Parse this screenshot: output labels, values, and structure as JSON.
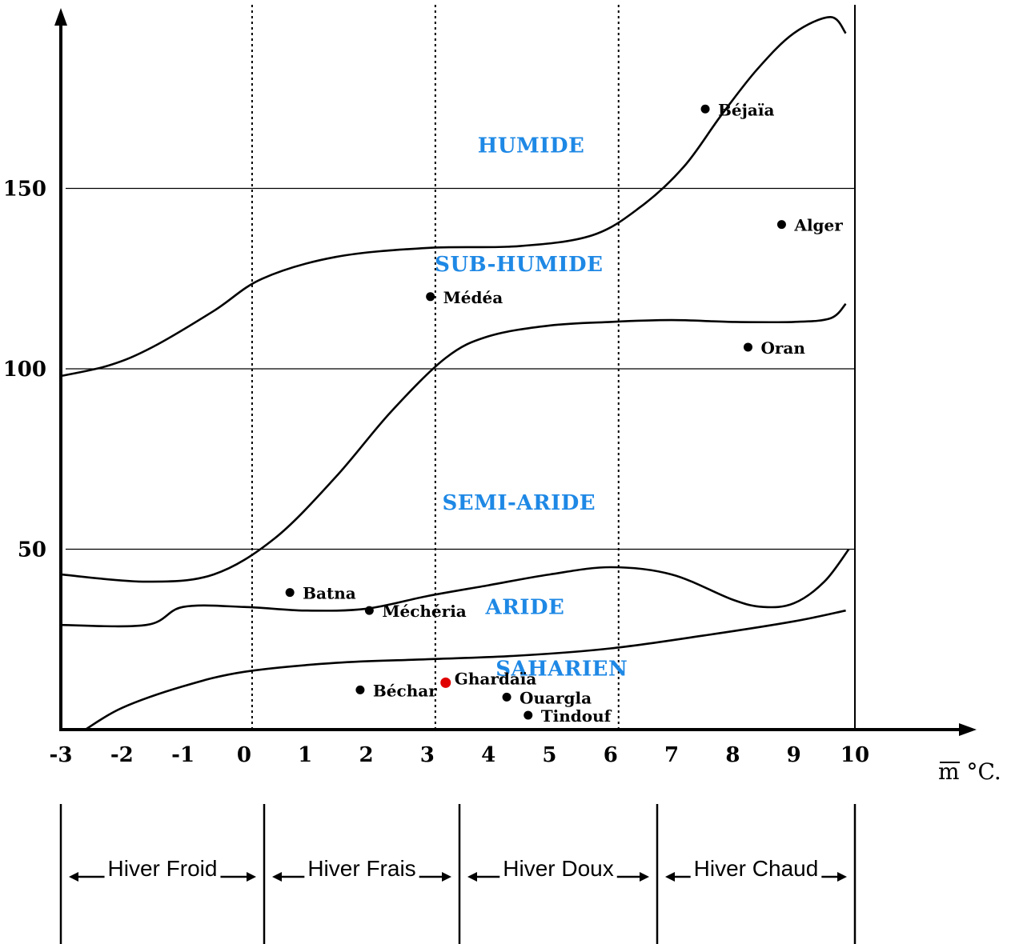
{
  "chart_data": {
    "type": "scatter",
    "title": "",
    "xlabel": "m °C.",
    "ylabel": "",
    "xlim": [
      -3,
      10
    ],
    "ylim": [
      0,
      150
    ],
    "x_ticks": [
      "-3",
      "-2",
      "-1",
      "0",
      "1",
      "2",
      "3",
      "4",
      "5",
      "6",
      "7",
      "8",
      "9",
      "10"
    ],
    "y_ticks": [
      "50",
      "100",
      "150"
    ],
    "grid": "horizontal lines at 50, 100, 150",
    "colors": {
      "axis": "#000000",
      "zone_label": "#1e88e5",
      "highlight": "#e00000",
      "station": "#000000"
    },
    "zones": [
      "HUMIDE",
      "SUB-HUMIDE",
      "SEMI-ARIDE",
      "ARIDE",
      "SAHARIEN"
    ],
    "zone_positions": [
      {
        "name": "HUMIDE",
        "x": 4.7,
        "y": 162
      },
      {
        "name": "SUB-HUMIDE",
        "x": 4.5,
        "y": 129
      },
      {
        "name": "SEMI-ARIDE",
        "x": 4.5,
        "y": 63
      },
      {
        "name": "ARIDE",
        "x": 4.6,
        "y": 34
      },
      {
        "name": "SAHARIEN",
        "x": 5.2,
        "y": 17
      }
    ],
    "boundaries": [
      {
        "name": "humide / sub-humide",
        "points": [
          [
            -3,
            98
          ],
          [
            -2.2,
            101
          ],
          [
            -1.5,
            106
          ],
          [
            -0.5,
            116
          ],
          [
            0.3,
            125
          ],
          [
            1.5,
            131
          ],
          [
            3,
            133.5
          ],
          [
            4.5,
            134
          ],
          [
            5.7,
            137
          ],
          [
            6.5,
            145
          ],
          [
            7.2,
            156
          ],
          [
            7.8,
            170
          ],
          [
            8.4,
            183
          ],
          [
            9.0,
            193
          ],
          [
            9.6,
            197.5
          ],
          [
            9.85,
            193
          ]
        ]
      },
      {
        "name": "sub-humide / semi-aride",
        "points": [
          [
            -3,
            43
          ],
          [
            -1.6,
            41
          ],
          [
            -0.5,
            43
          ],
          [
            0.5,
            53
          ],
          [
            1.5,
            70
          ],
          [
            2.4,
            88
          ],
          [
            3.3,
            103
          ],
          [
            4.0,
            109
          ],
          [
            5.0,
            112
          ],
          [
            6.0,
            113
          ],
          [
            7.0,
            113.5
          ],
          [
            8.0,
            113
          ],
          [
            9.0,
            113
          ],
          [
            9.6,
            114
          ],
          [
            9.85,
            118
          ]
        ]
      },
      {
        "name": "semi-aride / aride",
        "points": [
          [
            -3,
            29
          ],
          [
            -1.6,
            29
          ],
          [
            -1.0,
            34
          ],
          [
            0,
            34
          ],
          [
            1.0,
            33
          ],
          [
            2.0,
            33.5
          ],
          [
            3.0,
            37
          ],
          [
            4.0,
            40
          ],
          [
            5.0,
            43
          ],
          [
            6.0,
            45
          ],
          [
            7.0,
            43
          ],
          [
            8.0,
            36
          ],
          [
            8.5,
            34
          ],
          [
            9.0,
            35
          ],
          [
            9.5,
            41
          ],
          [
            9.9,
            50
          ]
        ]
      },
      {
        "name": "aride / saharien",
        "points": [
          [
            -2.6,
            0
          ],
          [
            -2.0,
            6
          ],
          [
            -1.0,
            12
          ],
          [
            0,
            16
          ],
          [
            1.5,
            18.5
          ],
          [
            3.0,
            19.5
          ],
          [
            4.5,
            20.5
          ],
          [
            6.0,
            22.5
          ],
          [
            7.5,
            26
          ],
          [
            9.0,
            30
          ],
          [
            9.85,
            33
          ]
        ]
      }
    ],
    "stations": [
      {
        "name": "Béjaïa",
        "x": 7.55,
        "y": 172,
        "highlight": false
      },
      {
        "name": "Alger",
        "x": 8.8,
        "y": 140,
        "highlight": false
      },
      {
        "name": "Médéa",
        "x": 3.05,
        "y": 120,
        "highlight": false
      },
      {
        "name": "Oran",
        "x": 8.25,
        "y": 106,
        "highlight": false
      },
      {
        "name": "Batna",
        "x": 0.75,
        "y": 38,
        "highlight": false
      },
      {
        "name": "Méchéria",
        "x": 2.05,
        "y": 33,
        "highlight": false
      },
      {
        "name": "Béchar",
        "x": 1.9,
        "y": 11,
        "highlight": false
      },
      {
        "name": "Ghardaïa",
        "x": 3.3,
        "y": 13,
        "highlight": true
      },
      {
        "name": "Ouargla",
        "x": 4.3,
        "y": 9,
        "highlight": false
      },
      {
        "name": "Tindouf",
        "x": 4.65,
        "y": 4,
        "highlight": false
      }
    ],
    "periods": [
      {
        "label": "Hiver Froid",
        "from": -3,
        "to": 0
      },
      {
        "label": "Hiver Frais",
        "from": 0,
        "to": 3
      },
      {
        "label": "Hiver Doux",
        "from": 3,
        "to": 6
      },
      {
        "label": "Hiver Chaud",
        "from": 6,
        "to": 10
      }
    ]
  }
}
